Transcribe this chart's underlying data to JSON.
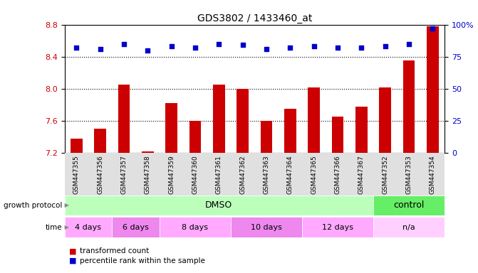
{
  "title": "GDS3802 / 1433460_at",
  "samples": [
    "GSM447355",
    "GSM447356",
    "GSM447357",
    "GSM447358",
    "GSM447359",
    "GSM447360",
    "GSM447361",
    "GSM447362",
    "GSM447363",
    "GSM447364",
    "GSM447365",
    "GSM447366",
    "GSM447367",
    "GSM447352",
    "GSM447353",
    "GSM447354"
  ],
  "bar_values": [
    7.38,
    7.5,
    8.05,
    7.22,
    7.82,
    7.6,
    8.05,
    8.0,
    7.6,
    7.75,
    8.02,
    7.65,
    7.78,
    8.02,
    8.35,
    8.78
  ],
  "dot_values": [
    82,
    81,
    85,
    80,
    83,
    82,
    85,
    84,
    81,
    82,
    83,
    82,
    82,
    83,
    85,
    97
  ],
  "ymin": 7.2,
  "ymax": 8.8,
  "yticks": [
    7.2,
    7.6,
    8.0,
    8.4,
    8.8
  ],
  "y2ticks": [
    0,
    25,
    50,
    75,
    100
  ],
  "y2labels": [
    "0",
    "25",
    "50",
    "75",
    "100%"
  ],
  "bar_color": "#cc0000",
  "dot_color": "#0000cc",
  "background_color": "#ffffff",
  "yticklabel_color": "#cc0000",
  "y2ticklabel_color": "#0000cc",
  "growth_protocol_label": "growth protocol",
  "time_label": "time",
  "dmso_label": "DMSO",
  "control_label": "control",
  "time_groups": [
    {
      "label": "4 days",
      "start": 0,
      "end": 2
    },
    {
      "label": "6 days",
      "start": 2,
      "end": 4
    },
    {
      "label": "8 days",
      "start": 4,
      "end": 7
    },
    {
      "label": "10 days",
      "start": 7,
      "end": 10
    },
    {
      "label": "12 days",
      "start": 10,
      "end": 13
    },
    {
      "label": "n/a",
      "start": 13,
      "end": 16
    }
  ],
  "dmso_range": [
    0,
    13
  ],
  "control_range": [
    13,
    16
  ],
  "legend_items": [
    {
      "label": "transformed count",
      "color": "#cc0000"
    },
    {
      "label": "percentile rank within the sample",
      "color": "#0000cc"
    }
  ]
}
